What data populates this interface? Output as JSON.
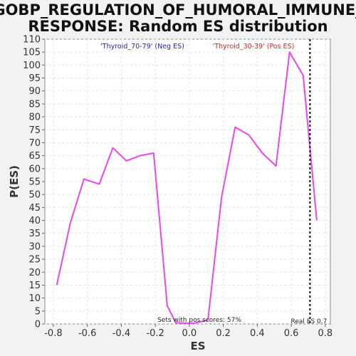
{
  "chart_data": {
    "type": "line",
    "title_lines": [
      "GOBP_REGULATION_OF_HUMORAL_IMMUNE_",
      "RESPONSE: Random ES distribution"
    ],
    "xlabel": "ES",
    "ylabel": "P(ES)",
    "xlim": [
      -0.85,
      0.83
    ],
    "ylim": [
      0,
      110
    ],
    "x_ticks": [
      -0.8,
      -0.6,
      -0.4,
      -0.2,
      0.0,
      0.2,
      0.4,
      0.6,
      0.8
    ],
    "x_tick_labels": [
      "-0.8",
      "-0.6",
      "-0.4",
      "-0.2",
      "0.0",
      "0.2",
      "0.4",
      "0.6",
      "0.8"
    ],
    "y_ticks": [
      0,
      5,
      10,
      15,
      20,
      25,
      30,
      35,
      40,
      45,
      50,
      55,
      60,
      65,
      70,
      75,
      80,
      85,
      90,
      95,
      100,
      105,
      110
    ],
    "y_tick_labels": [
      "0",
      "5",
      "10",
      "15",
      "20",
      "25",
      "30",
      "35",
      "40",
      "45",
      "50",
      "55",
      "60",
      "65",
      "70",
      "75",
      "80",
      "85",
      "90",
      "95",
      "100",
      "105",
      "110"
    ],
    "grid": true,
    "series": [
      {
        "color": "#ee44ee",
        "x": [
          -0.78,
          -0.7,
          -0.62,
          -0.53,
          -0.45,
          -0.37,
          -0.29,
          -0.21,
          -0.13,
          -0.08,
          -0.03,
          0.03,
          0.11,
          0.19,
          0.27,
          0.35,
          0.43,
          0.51,
          0.59,
          0.67,
          0.75
        ],
        "y": [
          15,
          39,
          56,
          54,
          68,
          63,
          65,
          66,
          7,
          0.5,
          0.3,
          0.3,
          1.5,
          49,
          76,
          73,
          66,
          61,
          105,
          96,
          40
        ]
      }
    ],
    "reference_line": {
      "x": 0.71,
      "label": "Real ES 0.7",
      "color": "#111111",
      "style": "dotted"
    },
    "legend": [
      {
        "text": "'Thyroid_70-79' (Neg ES)",
        "color": "#2222cc"
      },
      {
        "text": "'Thyroid_30-39' (Pos ES)",
        "color": "#dd2222"
      }
    ],
    "annotation": "Sets with pos scores: 57%"
  }
}
